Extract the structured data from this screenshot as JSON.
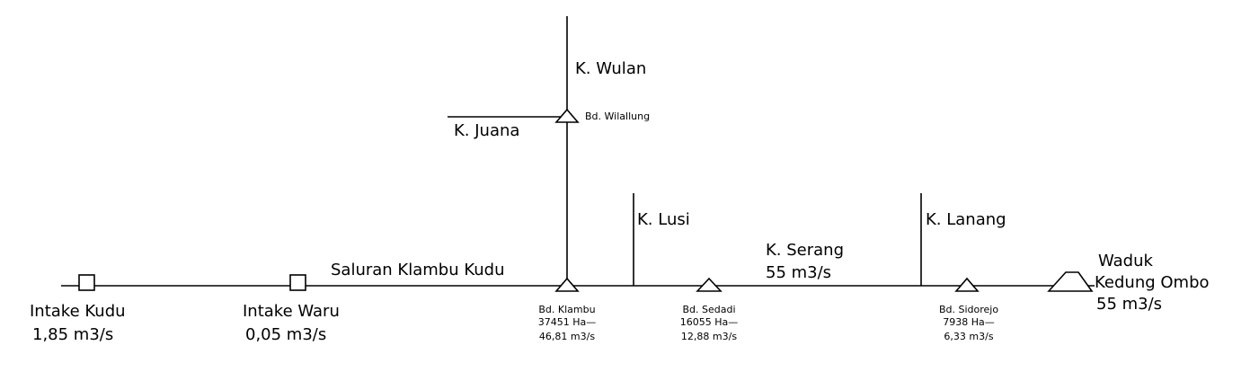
{
  "rivers": {
    "wulan": "K.  Wulan",
    "juana": "K.  Juana",
    "lusi": "K.  Lusi",
    "serang": "K.  Serang",
    "serang_flow": "55 m3/s",
    "lanang": "K.  Lanang"
  },
  "channel": {
    "name": "Saluran  Klambu  Kudu"
  },
  "intakes": {
    "kudu": {
      "name": "Intake  Kudu",
      "flow": "1,85  m3/s"
    },
    "waru": {
      "name": "Intake  Waru",
      "flow": "0,05  m3/s"
    }
  },
  "weirs": {
    "wilalung": {
      "name": "Bd.  Wilallung"
    },
    "klambu": {
      "name": "Bd.  Klambu",
      "area": "37451  Ha—",
      "flow": "46,81  m3/s"
    },
    "sedadi": {
      "name": "Bd.  Sedadi",
      "area": "16055  Ha—",
      "flow": "12,88  m3/s"
    },
    "sidorejo": {
      "name": "Bd.  Sidorejo",
      "area": "7938  Ha—",
      "flow": "6,33  m3/s"
    }
  },
  "reservoir": {
    "line1": "Waduk",
    "line2": "Kedung  Ombo",
    "line3": "55  m3/s"
  }
}
